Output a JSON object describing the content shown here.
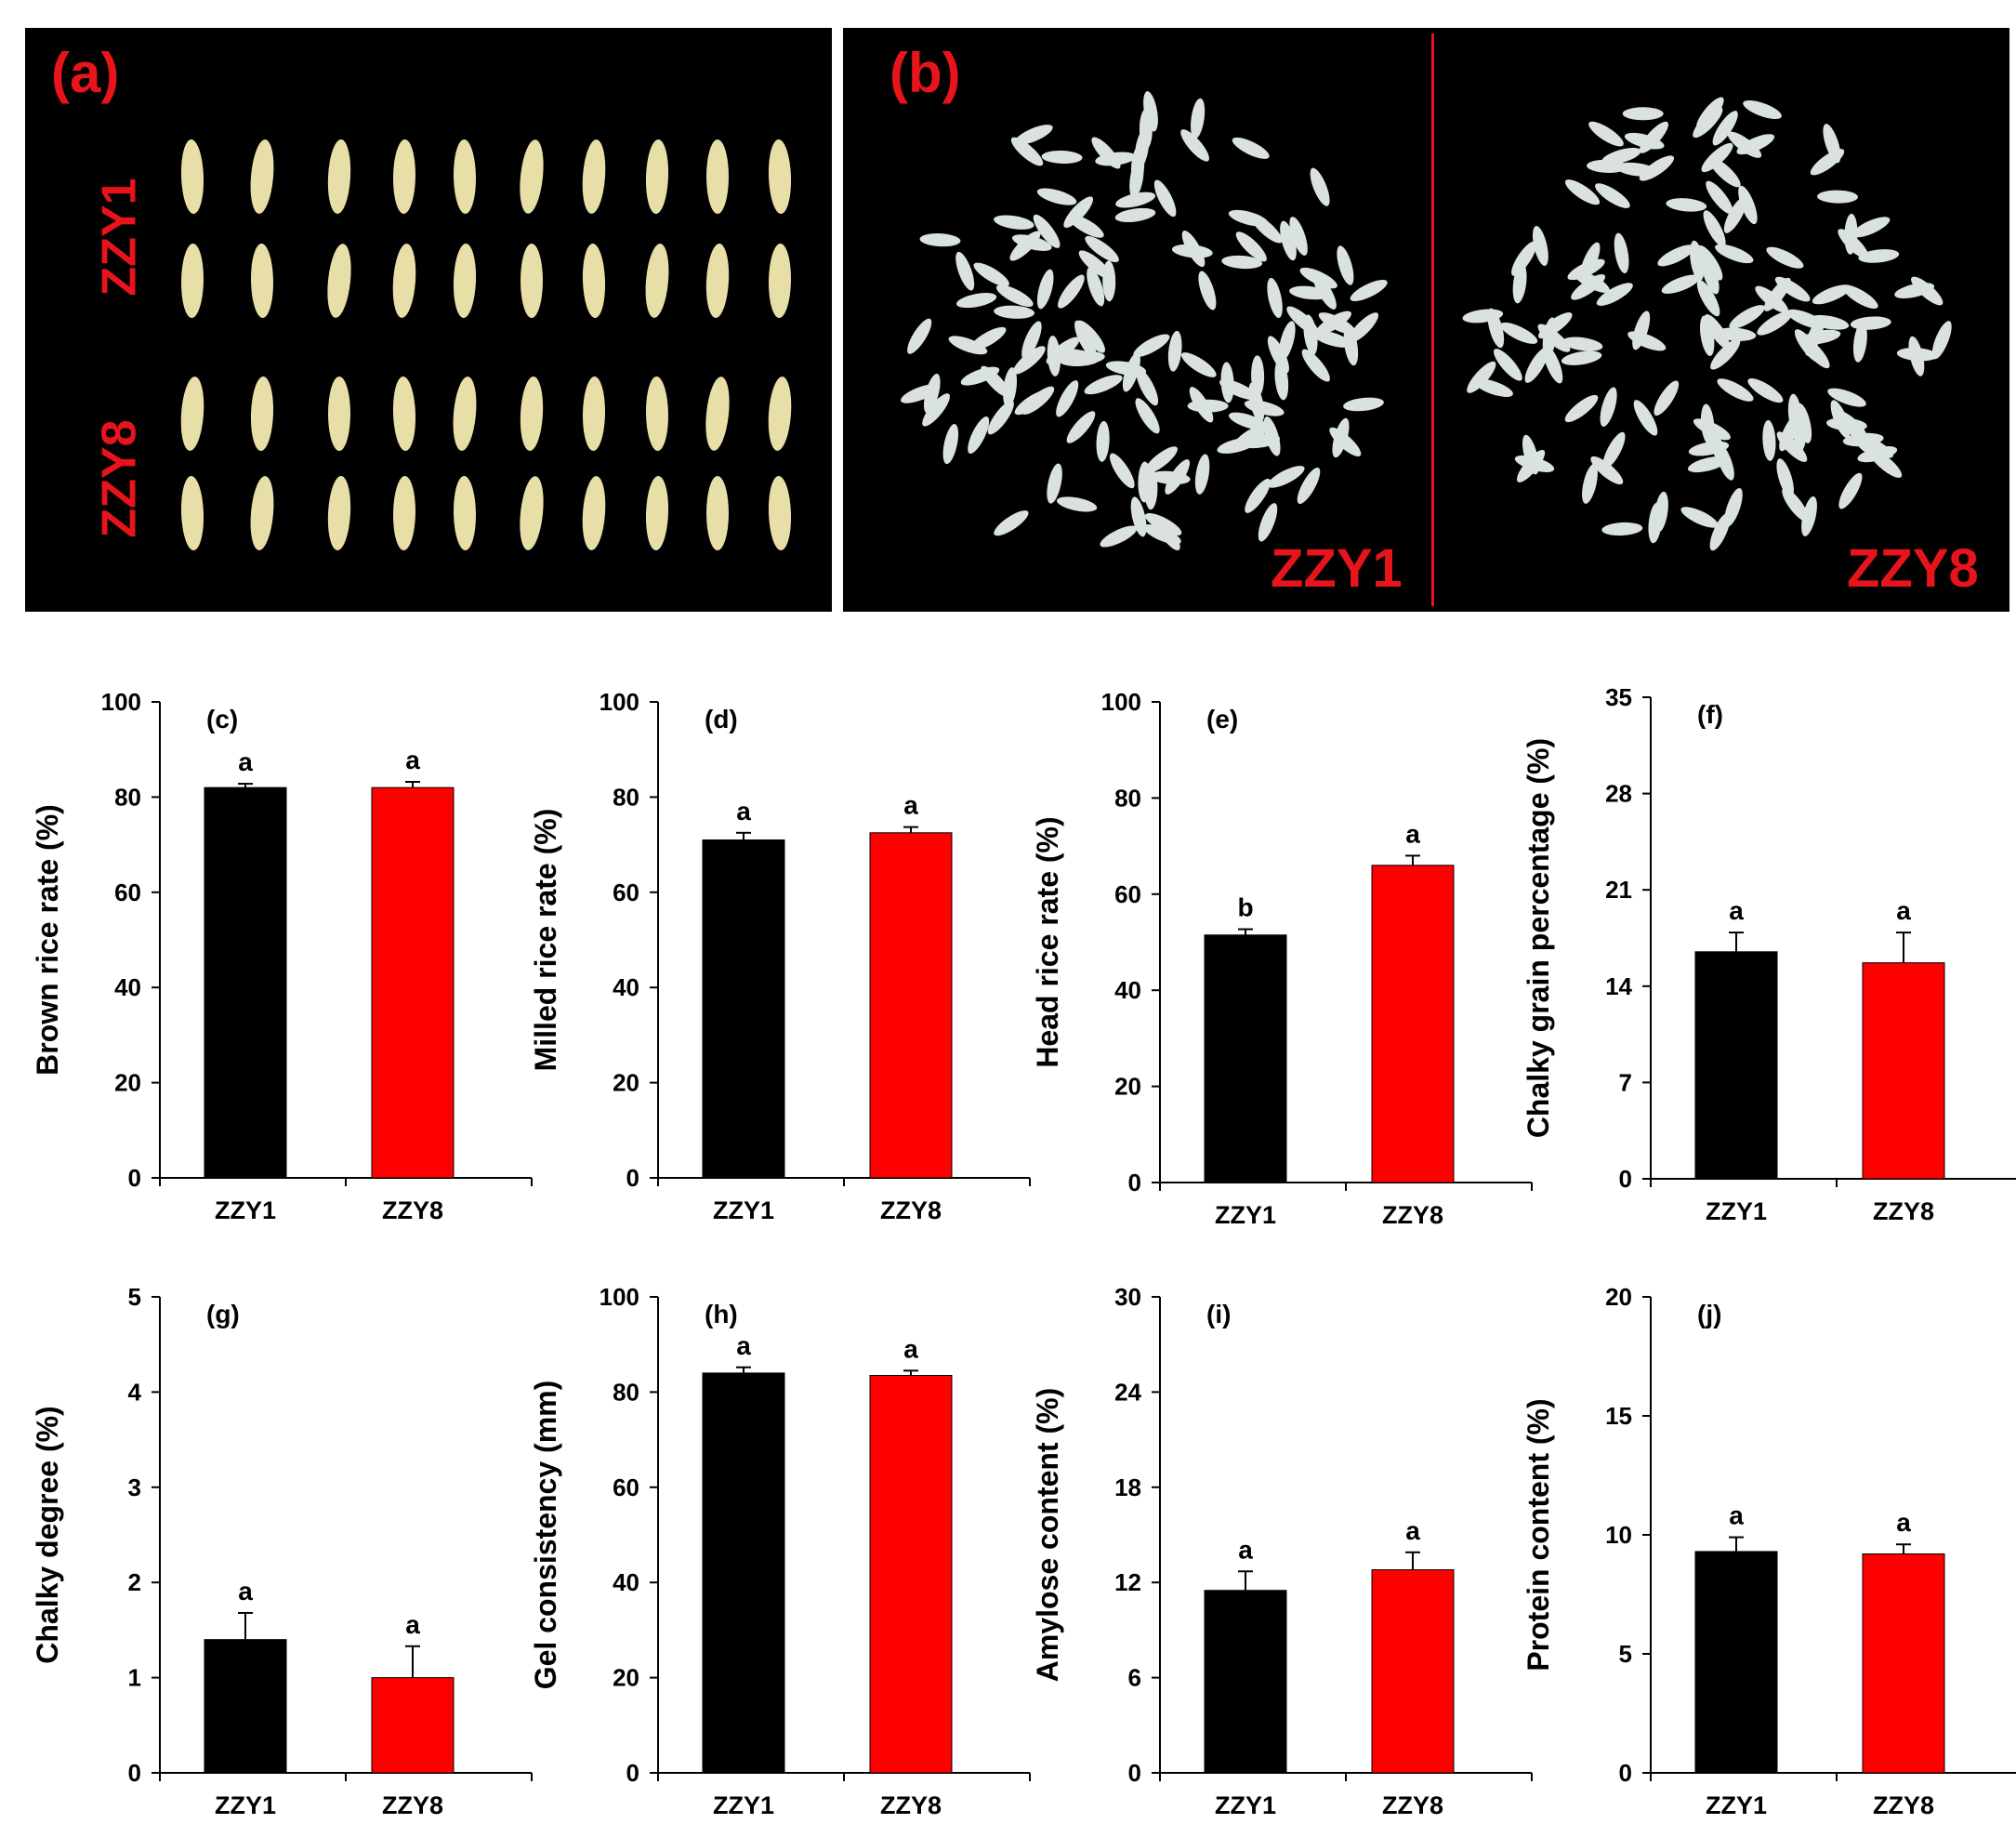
{
  "photos": {
    "panel_a": {
      "label": "(a)",
      "row_labels": [
        "ZZY1",
        "ZZY8"
      ],
      "grain_color": "#e8dfa8",
      "background": "#000000"
    },
    "panel_b": {
      "label": "(b)",
      "variety_labels": [
        "ZZY1",
        "ZZY8"
      ],
      "grain_color": "#d9e2dc",
      "divider_color": "#e8141b"
    },
    "label_color": "#e8141b"
  },
  "colors": {
    "ZZY1": "#000000",
    "ZZY8": "#ff0000"
  },
  "chart_data": [
    {
      "panel": "(c)",
      "type": "bar",
      "categories": [
        "ZZY1",
        "ZZY8"
      ],
      "values": [
        82,
        82
      ],
      "errors": [
        0.8,
        1.2
      ],
      "letters": [
        "a",
        "a"
      ],
      "ylabel": "Brown rice rate (%)",
      "ylim": [
        0,
        100
      ],
      "yticks": [
        "0",
        "20",
        "40",
        "60",
        "80",
        "100"
      ]
    },
    {
      "panel": "(d)",
      "type": "bar",
      "categories": [
        "ZZY1",
        "ZZY8"
      ],
      "values": [
        71,
        72.5
      ],
      "errors": [
        1.5,
        1.2
      ],
      "letters": [
        "a",
        "a"
      ],
      "ylabel": "Milled rice rate (%)",
      "ylim": [
        0,
        100
      ],
      "yticks": [
        "0",
        "20",
        "40",
        "60",
        "80",
        "100"
      ]
    },
    {
      "panel": "(e)",
      "type": "bar",
      "categories": [
        "ZZY1",
        "ZZY8"
      ],
      "values": [
        51.5,
        66
      ],
      "errors": [
        1.2,
        2
      ],
      "letters": [
        "b",
        "a"
      ],
      "ylabel": "Head rice rate (%)",
      "ylim": [
        0,
        100
      ],
      "yticks": [
        "0",
        "20",
        "40",
        "60",
        "80",
        "100"
      ]
    },
    {
      "panel": "(f)",
      "type": "bar",
      "categories": [
        "ZZY1",
        "ZZY8"
      ],
      "values": [
        16.5,
        15.7
      ],
      "errors": [
        1.4,
        2.2
      ],
      "letters": [
        "a",
        "a"
      ],
      "ylabel": "Chalky grain percentage (%)",
      "ylim": [
        0,
        35
      ],
      "yticks": [
        "0",
        "7",
        "14",
        "21",
        "28",
        "35"
      ]
    },
    {
      "panel": "(g)",
      "type": "bar",
      "categories": [
        "ZZY1",
        "ZZY8"
      ],
      "values": [
        1.4,
        1.0
      ],
      "errors": [
        0.28,
        0.33
      ],
      "letters": [
        "a",
        "a"
      ],
      "ylabel": "Chalky degree (%)",
      "ylim": [
        0,
        5
      ],
      "yticks": [
        "0",
        "1",
        "2",
        "3",
        "4",
        "5"
      ]
    },
    {
      "panel": "(h)",
      "type": "bar",
      "categories": [
        "ZZY1",
        "ZZY8"
      ],
      "values": [
        84,
        83.5
      ],
      "errors": [
        1.2,
        1
      ],
      "letters": [
        "a",
        "a"
      ],
      "ylabel": "Gel consistency (mm)",
      "ylim": [
        0,
        100
      ],
      "yticks": [
        "0",
        "20",
        "40",
        "60",
        "80",
        "100"
      ]
    },
    {
      "panel": "(i)",
      "type": "bar",
      "categories": [
        "ZZY1",
        "ZZY8"
      ],
      "values": [
        11.5,
        12.8
      ],
      "errors": [
        1.2,
        1.1
      ],
      "letters": [
        "a",
        "a"
      ],
      "ylabel": "Amylose content (%)",
      "ylim": [
        0,
        30
      ],
      "yticks": [
        "0",
        "6",
        "12",
        "18",
        "24",
        "30"
      ]
    },
    {
      "panel": "(j)",
      "type": "bar",
      "categories": [
        "ZZY1",
        "ZZY8"
      ],
      "values": [
        9.3,
        9.2
      ],
      "errors": [
        0.6,
        0.4
      ],
      "letters": [
        "a",
        "a"
      ],
      "ylabel": "Protein content (%)",
      "ylim": [
        0,
        20
      ],
      "yticks": [
        "0",
        "5",
        "10",
        "15",
        "20"
      ]
    }
  ]
}
